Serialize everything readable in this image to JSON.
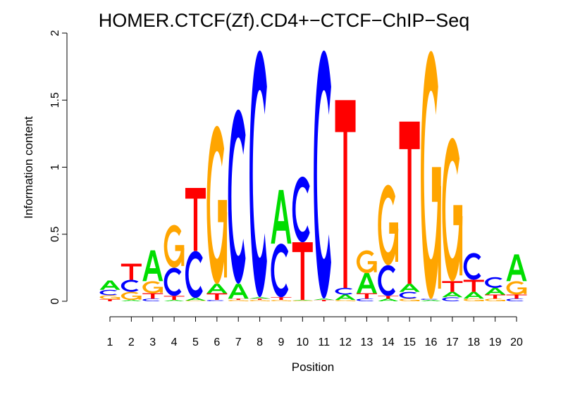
{
  "chart_data": {
    "type": "sequence-logo",
    "title": "HOMER.CTCF(Zf).CD4+−CTCF−ChIP−Seq",
    "xlabel": "Position",
    "ylabel": "Information content",
    "ylim": [
      0,
      2
    ],
    "yticks": [
      "0",
      "0.5",
      "1",
      "1.5",
      "2"
    ],
    "xticks": [
      "1",
      "2",
      "3",
      "4",
      "5",
      "6",
      "7",
      "8",
      "9",
      "10",
      "11",
      "12",
      "13",
      "14",
      "15",
      "16",
      "17",
      "18",
      "19",
      "20"
    ],
    "colors": {
      "A": "#00dd00",
      "C": "#0000ff",
      "G": "#ffa500",
      "T": "#ff0000"
    },
    "positions": [
      [
        [
          "T",
          0.015
        ],
        [
          "G",
          0.03
        ],
        [
          "C",
          0.04
        ],
        [
          "A",
          0.07
        ]
      ],
      [
        [
          "A",
          0.01
        ],
        [
          "G",
          0.06
        ],
        [
          "C",
          0.09
        ],
        [
          "T",
          0.12
        ]
      ],
      [
        [
          "C",
          0.02
        ],
        [
          "T",
          0.04
        ],
        [
          "G",
          0.09
        ],
        [
          "A",
          0.23
        ]
      ],
      [
        [
          "A",
          0.01
        ],
        [
          "T",
          0.03
        ],
        [
          "C",
          0.21
        ],
        [
          "G",
          0.32
        ]
      ],
      [
        [
          "G",
          0.005
        ],
        [
          "A",
          0.02
        ],
        [
          "C",
          0.35
        ],
        [
          "T",
          0.47
        ]
      ],
      [
        [
          "C",
          0.01
        ],
        [
          "T",
          0.05
        ],
        [
          "A",
          0.07
        ],
        [
          "G",
          1.18
        ]
      ],
      [
        [
          "G",
          0.01
        ],
        [
          "T",
          0.01
        ],
        [
          "A",
          0.11
        ],
        [
          "C",
          1.3
        ]
      ],
      [
        [
          "G",
          0.01
        ],
        [
          "T",
          0.01
        ],
        [
          "A",
          0.01
        ],
        [
          "C",
          1.84
        ]
      ],
      [
        [
          "G",
          0.01
        ],
        [
          "T",
          0.02
        ],
        [
          "C",
          0.4
        ],
        [
          "A",
          0.4
        ]
      ],
      [
        [
          "G",
          0.005
        ],
        [
          "A",
          0.005
        ],
        [
          "T",
          0.43
        ],
        [
          "C",
          0.49
        ]
      ],
      [
        [
          "T",
          0.01
        ],
        [
          "A",
          0.01
        ],
        [
          "C",
          1.85
        ]
      ],
      [
        [
          "G",
          0.01
        ],
        [
          "A",
          0.04
        ],
        [
          "C",
          0.05
        ],
        [
          "T",
          1.4
        ]
      ],
      [
        [
          "C",
          0.02
        ],
        [
          "T",
          0.04
        ],
        [
          "A",
          0.15
        ],
        [
          "G",
          0.17
        ]
      ],
      [
        [
          "A",
          0.02
        ],
        [
          "T",
          0.02
        ],
        [
          "C",
          0.23
        ],
        [
          "G",
          0.6
        ]
      ],
      [
        [
          "G",
          0.02
        ],
        [
          "C",
          0.05
        ],
        [
          "A",
          0.06
        ],
        [
          "T",
          1.21
        ]
      ],
      [
        [
          "A",
          0.01
        ],
        [
          "C",
          0.01
        ],
        [
          "G",
          1.85
        ]
      ],
      [
        [
          "C",
          0.03
        ],
        [
          "A",
          0.04
        ],
        [
          "T",
          0.08
        ],
        [
          "G",
          1.07
        ]
      ],
      [
        [
          "G",
          0.02
        ],
        [
          "A",
          0.05
        ],
        [
          "T",
          0.09
        ],
        [
          "C",
          0.2
        ]
      ],
      [
        [
          "G",
          0.02
        ],
        [
          "T",
          0.03
        ],
        [
          "A",
          0.05
        ],
        [
          "C",
          0.08
        ]
      ],
      [
        [
          "C",
          0.02
        ],
        [
          "T",
          0.03
        ],
        [
          "G",
          0.1
        ],
        [
          "A",
          0.2
        ]
      ]
    ]
  }
}
